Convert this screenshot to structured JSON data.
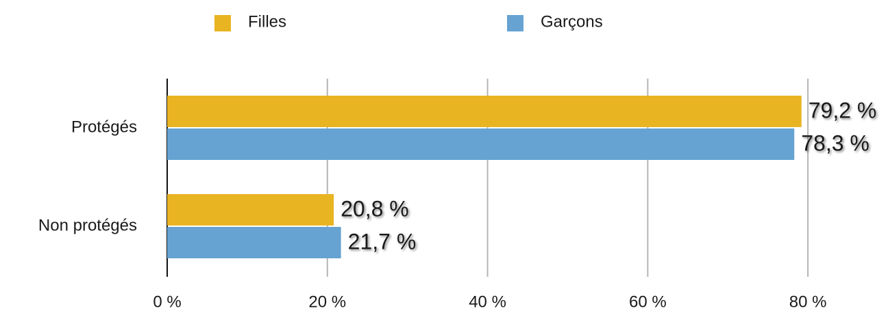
{
  "chart_data": {
    "type": "bar",
    "orientation": "horizontal",
    "categories": [
      "Protégés",
      "Non protégés"
    ],
    "series": [
      {
        "name": "Filles",
        "color": "#e8b422",
        "values": [
          79.2,
          20.8
        ],
        "value_labels": [
          "79,2 %",
          "20,8 %"
        ]
      },
      {
        "name": "Garçons",
        "color": "#66a3d2",
        "values": [
          78.3,
          21.7
        ],
        "value_labels": [
          "78,3 %",
          "21,7 %"
        ]
      }
    ],
    "xlim": [
      0,
      90
    ],
    "xticks": [
      {
        "value": 0,
        "label": "0 %"
      },
      {
        "value": 20,
        "label": "20 %"
      },
      {
        "value": 40,
        "label": "40 %"
      },
      {
        "value": 60,
        "label": "60 %"
      },
      {
        "value": 80,
        "label": "80 %"
      }
    ],
    "grid": true,
    "legend": "top"
  }
}
